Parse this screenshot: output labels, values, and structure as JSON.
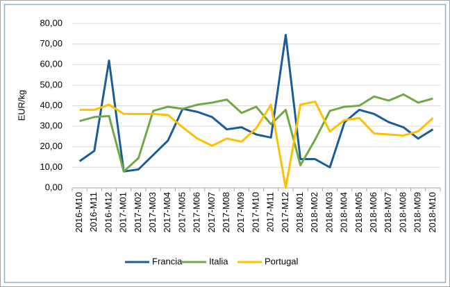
{
  "chart_data": {
    "type": "line",
    "ylabel": "EUR/kg",
    "categories": [
      "2016-M10",
      "2016-M11",
      "2016-M12",
      "2017-M01",
      "2017-M02",
      "2017-M03",
      "2017-M04",
      "2017-M05",
      "2017-M06",
      "2017-M07",
      "2017-M08",
      "2017-M09",
      "2017-M10",
      "2017-M11",
      "2017-M12",
      "2018-M01",
      "2018-M02",
      "2018-M03",
      "2018-M04",
      "2018-M05",
      "2018-M06",
      "2018-M07",
      "2018-M08",
      "2018-M09",
      "2018-M10"
    ],
    "series": [
      {
        "name": "Francia",
        "color": "#1b5c98",
        "values": [
          13,
          18,
          62,
          8,
          9,
          16,
          23,
          38.5,
          37,
          34.5,
          28.5,
          29.5,
          26,
          24.5,
          74.5,
          14,
          14,
          10,
          32,
          38,
          36,
          32,
          29.5,
          24,
          28.5
        ]
      },
      {
        "name": "Italia",
        "color": "#70a845",
        "values": [
          32.5,
          34.5,
          35,
          8,
          14.5,
          37.5,
          39.5,
          38.5,
          40.5,
          41.5,
          43,
          36.5,
          39.5,
          31,
          38,
          11,
          23.5,
          37.5,
          39.5,
          40,
          44.5,
          42.5,
          45.5,
          41.5,
          43.5
        ]
      },
      {
        "name": "Portugal",
        "color": "#ffc000",
        "values": [
          38,
          38,
          40.5,
          36,
          36,
          36,
          35.5,
          29.5,
          24,
          20.5,
          24,
          22.5,
          29,
          40.5,
          0,
          40.5,
          42,
          27.5,
          33,
          34,
          26.5,
          26,
          25.5,
          27.5,
          34
        ]
      }
    ],
    "ylim": [
      0,
      80
    ],
    "yticks": [
      {
        "value": 0,
        "label": "0,00"
      },
      {
        "value": 10,
        "label": "10,00"
      },
      {
        "value": 20,
        "label": "20,00"
      },
      {
        "value": 30,
        "label": "30,00"
      },
      {
        "value": 40,
        "label": "40,00"
      },
      {
        "value": 50,
        "label": "50,00"
      },
      {
        "value": 60,
        "label": "60,00"
      },
      {
        "value": 70,
        "label": "70,00"
      },
      {
        "value": 80,
        "label": "80,00"
      }
    ],
    "grid": true,
    "legend": "bottom"
  }
}
